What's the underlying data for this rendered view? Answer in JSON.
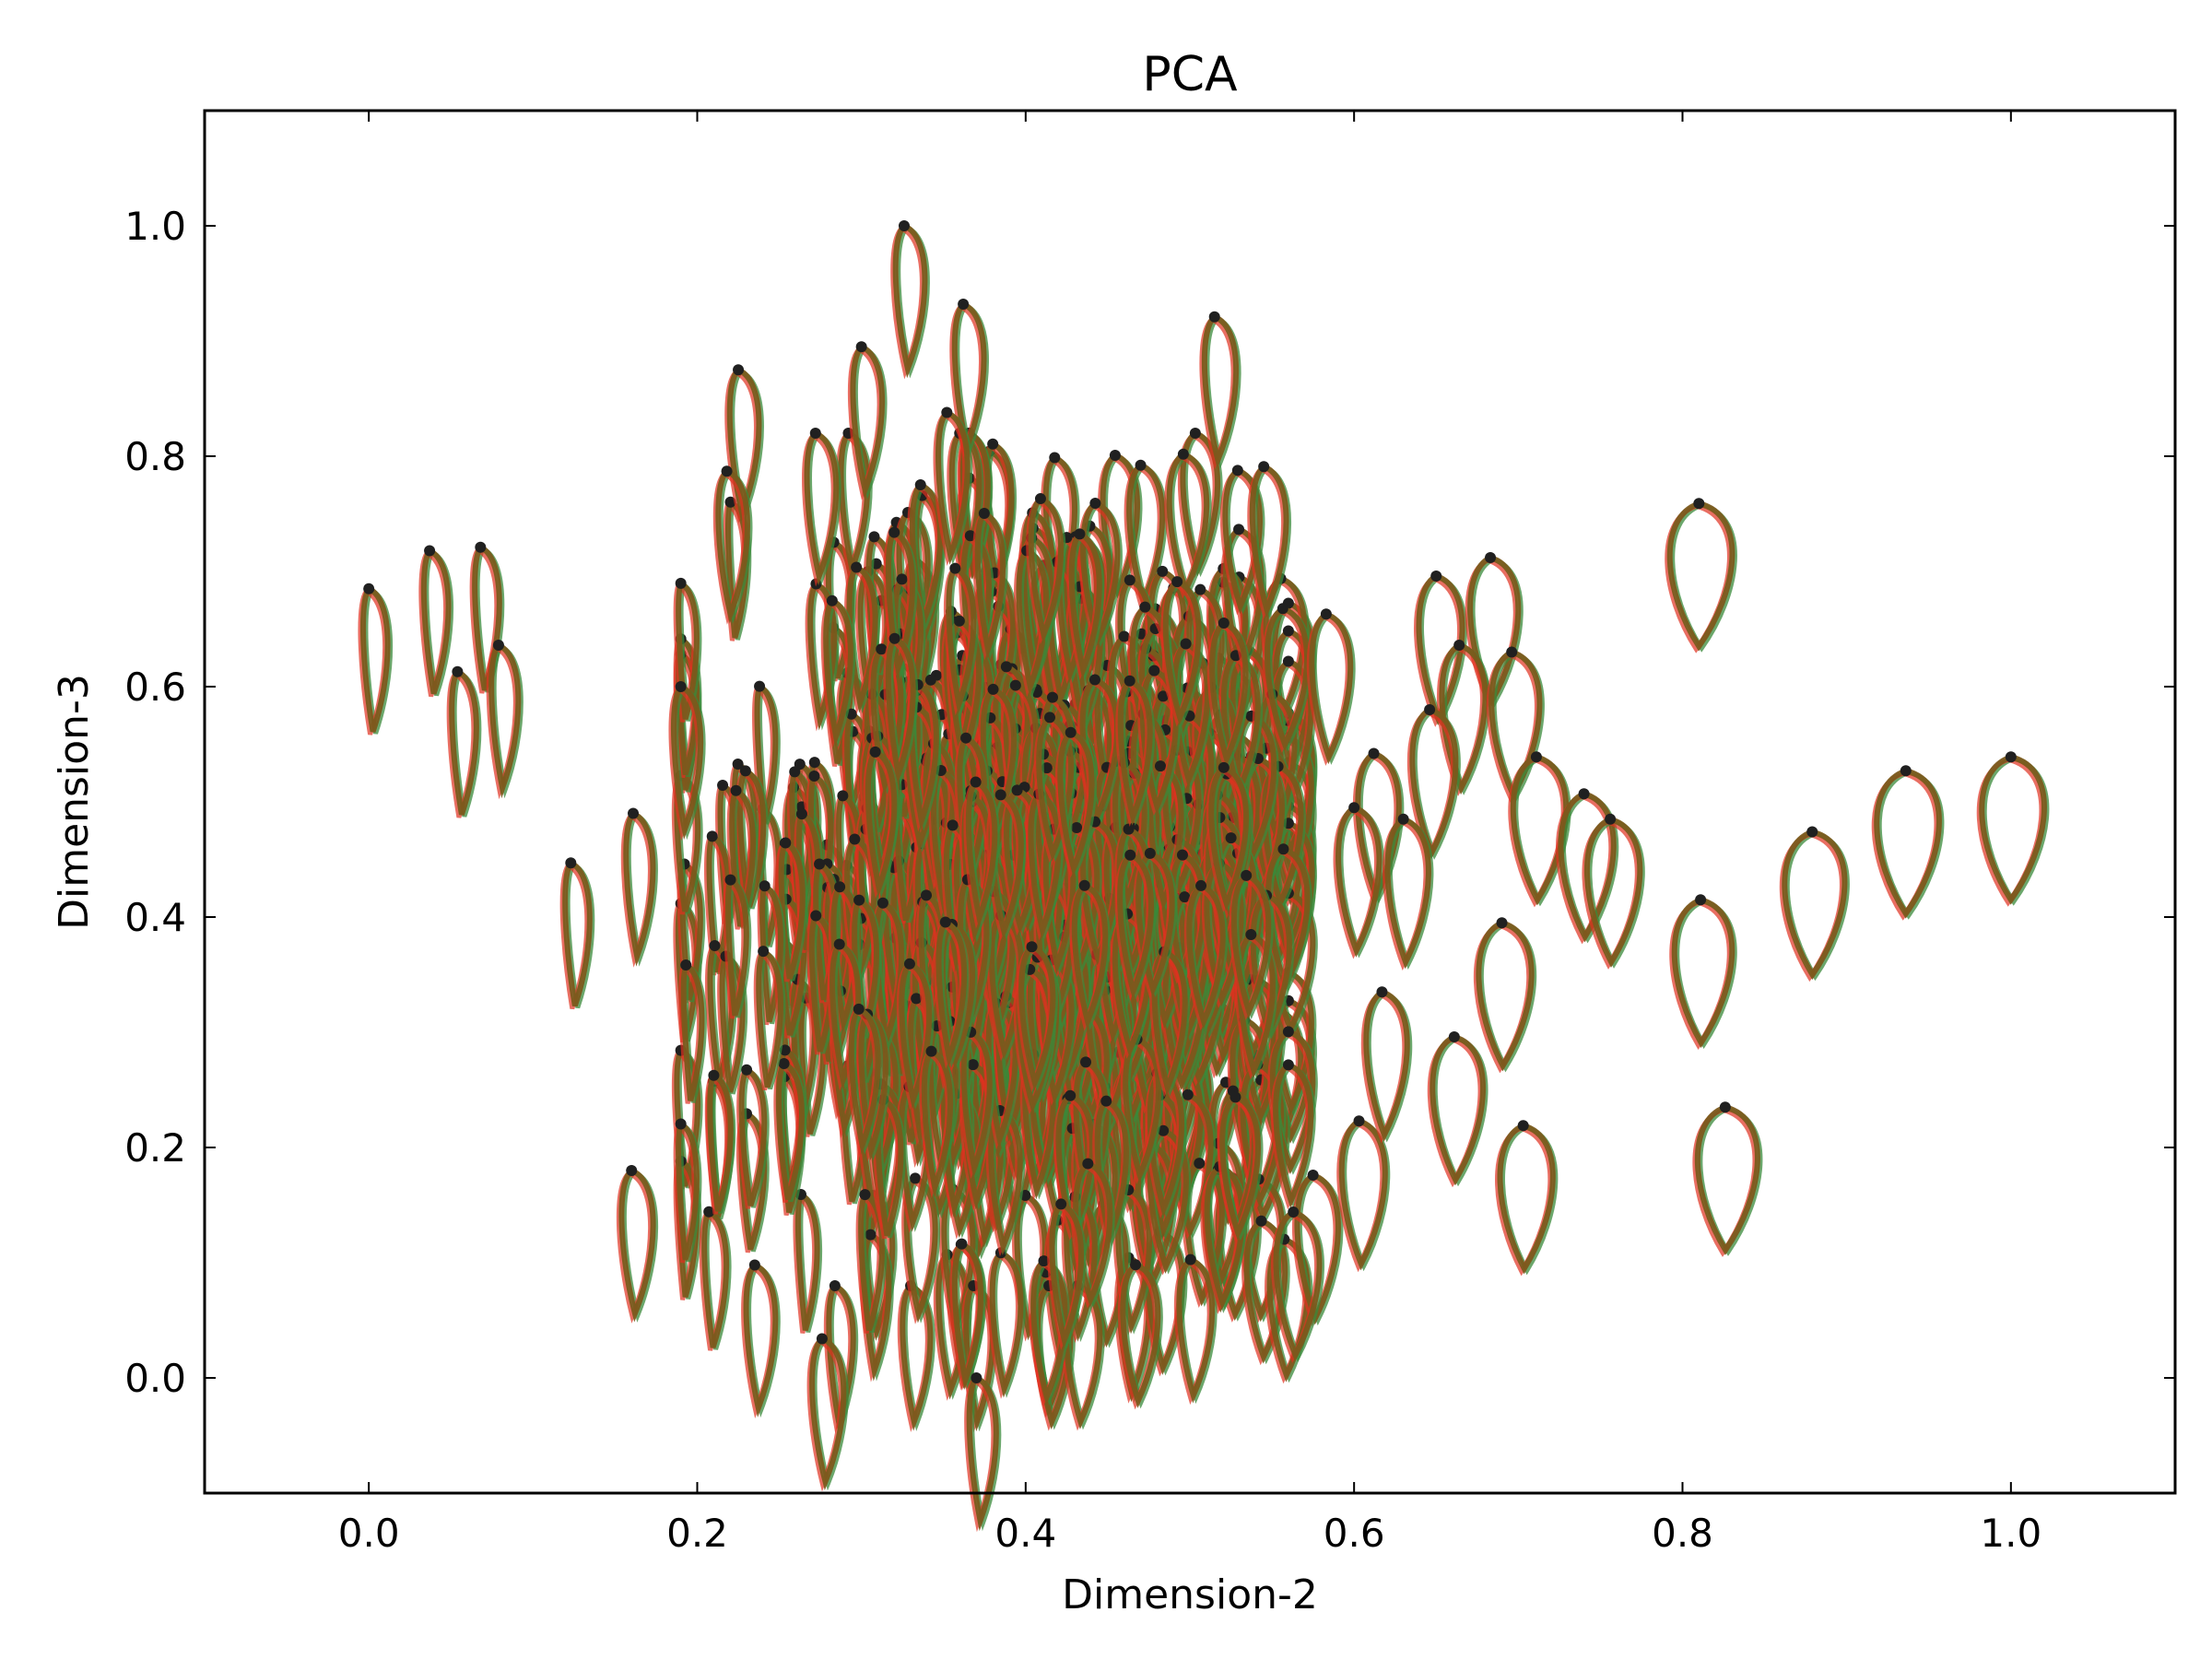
{
  "chart_data": {
    "type": "scatter",
    "title": "PCA",
    "xlabel": "Dimension-2",
    "ylabel": "Dimension-3",
    "xlim": [
      -0.1,
      1.1
    ],
    "ylim": [
      -0.1,
      1.1
    ],
    "xticks": [
      0.0,
      0.2,
      0.4,
      0.6,
      0.8,
      1.0
    ],
    "yticks": [
      0.0,
      0.2,
      0.4,
      0.6,
      0.8,
      1.0
    ],
    "xtick_labels": [
      "0.0",
      "0.2",
      "0.4",
      "0.6",
      "0.8",
      "1.0"
    ],
    "ytick_labels": [
      "0.0",
      "0.2",
      "0.4",
      "0.6",
      "0.8",
      "1.0"
    ],
    "grid": false,
    "marker": "leaf-shape glyph with dark dot at apex",
    "colors": {
      "main": "#7a5a1c",
      "overlay_green": "#3a8a3a",
      "overlay_red": "#e03020",
      "dot": "#202020"
    },
    "points": [
      {
        "x": 0.0,
        "y": 0.685,
        "w": 0.2
      },
      {
        "x": 0.037,
        "y": 0.718,
        "w": 0.2
      },
      {
        "x": 0.068,
        "y": 0.721,
        "w": 0.2
      },
      {
        "x": 0.054,
        "y": 0.613,
        "w": 0.2
      },
      {
        "x": 0.079,
        "y": 0.636,
        "w": 0.25
      },
      {
        "x": 0.123,
        "y": 0.447,
        "w": 0.2
      },
      {
        "x": 0.161,
        "y": 0.49,
        "w": 0.25
      },
      {
        "x": 0.16,
        "y": 0.18,
        "w": 0.35
      },
      {
        "x": 0.19,
        "y": 0.6,
        "w": 0.25
      },
      {
        "x": 0.225,
        "y": 0.875,
        "w": 0.3
      },
      {
        "x": 0.218,
        "y": 0.787,
        "w": 0.3
      },
      {
        "x": 0.235,
        "y": 0.098,
        "w": 0.3
      },
      {
        "x": 0.276,
        "y": 0.034,
        "w": 0.35
      },
      {
        "x": 0.272,
        "y": 0.82,
        "w": 0.3
      },
      {
        "x": 0.3,
        "y": 0.895,
        "w": 0.3
      },
      {
        "x": 0.326,
        "y": 1.0,
        "w": 0.3
      },
      {
        "x": 0.362,
        "y": 0.932,
        "w": 0.3
      },
      {
        "x": 0.352,
        "y": 0.838,
        "w": 0.3
      },
      {
        "x": 0.37,
        "y": 0.0,
        "w": 0.25
      },
      {
        "x": 0.515,
        "y": 0.921,
        "w": 0.35
      },
      {
        "x": 0.545,
        "y": 0.791,
        "w": 0.4
      },
      {
        "x": 0.583,
        "y": 0.663,
        "w": 0.5
      },
      {
        "x": 0.65,
        "y": 0.696,
        "w": 0.6
      },
      {
        "x": 0.683,
        "y": 0.712,
        "w": 0.7
      },
      {
        "x": 0.664,
        "y": 0.636,
        "w": 0.6
      },
      {
        "x": 0.696,
        "y": 0.63,
        "w": 0.7
      },
      {
        "x": 0.646,
        "y": 0.58,
        "w": 0.6
      },
      {
        "x": 0.612,
        "y": 0.542,
        "w": 0.55
      },
      {
        "x": 0.711,
        "y": 0.539,
        "w": 0.8
      },
      {
        "x": 0.74,
        "y": 0.507,
        "w": 0.8
      },
      {
        "x": 0.756,
        "y": 0.485,
        "w": 0.8
      },
      {
        "x": 0.81,
        "y": 0.759,
        "w": 1.0
      },
      {
        "x": 0.811,
        "y": 0.415,
        "w": 0.9
      },
      {
        "x": 0.879,
        "y": 0.474,
        "w": 0.95
      },
      {
        "x": 0.936,
        "y": 0.527,
        "w": 1.0
      },
      {
        "x": 1.0,
        "y": 0.539,
        "w": 1.0
      },
      {
        "x": 0.826,
        "y": 0.235,
        "w": 0.95
      },
      {
        "x": 0.703,
        "y": 0.219,
        "w": 0.8
      },
      {
        "x": 0.661,
        "y": 0.296,
        "w": 0.75
      },
      {
        "x": 0.69,
        "y": 0.395,
        "w": 0.8
      },
      {
        "x": 0.575,
        "y": 0.176,
        "w": 0.55
      },
      {
        "x": 0.563,
        "y": 0.144,
        "w": 0.6
      },
      {
        "x": 0.603,
        "y": 0.223,
        "w": 0.6
      },
      {
        "x": 0.6,
        "y": 0.495,
        "w": 0.55
      },
      {
        "x": 0.63,
        "y": 0.485,
        "w": 0.55
      },
      {
        "x": 0.617,
        "y": 0.335,
        "w": 0.55
      }
    ],
    "cluster": {
      "center_x": 0.4,
      "center_y": 0.45,
      "spread_x": 0.085,
      "spread_y": 0.15,
      "x_range": [
        0.19,
        0.56
      ],
      "y_range": [
        0.08,
        0.82
      ],
      "count": 750
    }
  }
}
